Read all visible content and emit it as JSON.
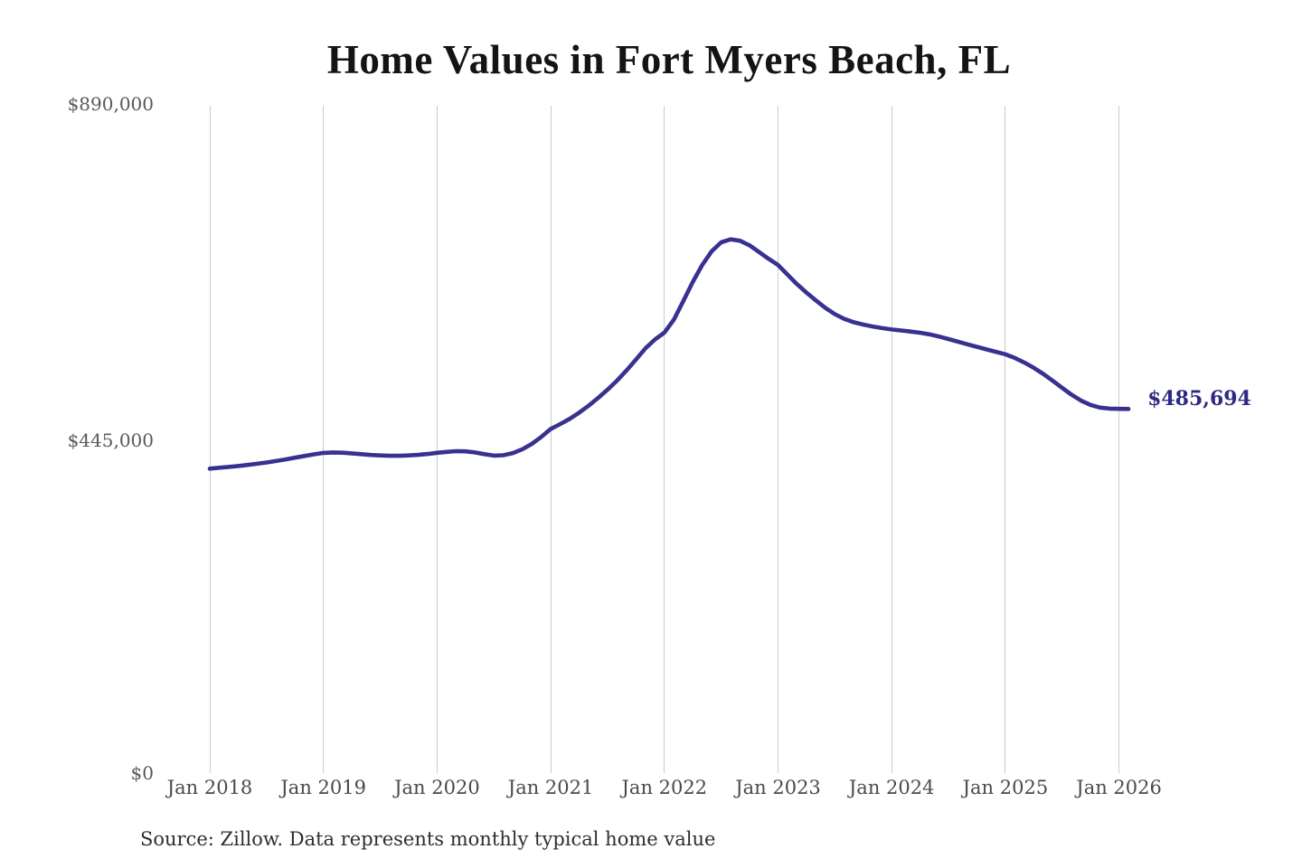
{
  "title": "Home Values in Fort Myers Beach, FL",
  "source_note": "Source: Zillow. Data represents monthly typical home value",
  "end_label": "$485,694",
  "colors": {
    "line": "#39318f",
    "end_label_text": "#2e2a84",
    "grid": "#cbcbcb",
    "axis_text": "#4a4a4a",
    "title_text": "#141414",
    "background": "#ffffff"
  },
  "chart_data": {
    "type": "line",
    "title": "Home Values in Fort Myers Beach, FL",
    "xlabel": "",
    "ylabel": "",
    "ylim": [
      0,
      890000
    ],
    "grid": "vertical-only",
    "legend": "none",
    "y_tick_labels": [
      "$0",
      "$445,000",
      "$890,000"
    ],
    "y_tick_values": [
      0,
      445000,
      890000
    ],
    "x_tick_labels": [
      "Jan 2018",
      "Jan 2019",
      "Jan 2020",
      "Jan 2021",
      "Jan 2022",
      "Jan 2023",
      "Jan 2024",
      "Jan 2025",
      "Jan 2026"
    ],
    "series": [
      {
        "name": "Monthly typical home value",
        "color": "#39318f",
        "start_month": "2018-01",
        "interval": "monthly",
        "final_value": 485694,
        "final_label": "$485,694",
        "values": [
          406000,
          407200,
          408300,
          409600,
          411000,
          412600,
          414300,
          416200,
          418300,
          420600,
          422900,
          425100,
          427000,
          427600,
          427300,
          426400,
          425300,
          424300,
          423600,
          423200,
          423200,
          423600,
          424400,
          425600,
          427100,
          428400,
          429300,
          429100,
          427600,
          425400,
          423400,
          423900,
          426800,
          431800,
          439000,
          448300,
          459000,
          465500,
          472400,
          480700,
          490000,
          500300,
          511400,
          523400,
          537000,
          551600,
          566500,
          578200,
          587400,
          604800,
          629700,
          654900,
          677700,
          696100,
          707900,
          711900,
          709900,
          703800,
          694900,
          685900,
          677600,
          664900,
          652200,
          640900,
          630300,
          620400,
          612000,
          605800,
          601300,
          598200,
          595600,
          593400,
          591700,
          590300,
          588900,
          587300,
          585100,
          582200,
          578900,
          575400,
          571900,
          568500,
          565100,
          561800,
          558600,
          553700,
          547600,
          540500,
          532400,
          523300,
          513700,
          504600,
          496700,
          490900,
          487400,
          486100,
          485800,
          485694
        ]
      }
    ]
  }
}
